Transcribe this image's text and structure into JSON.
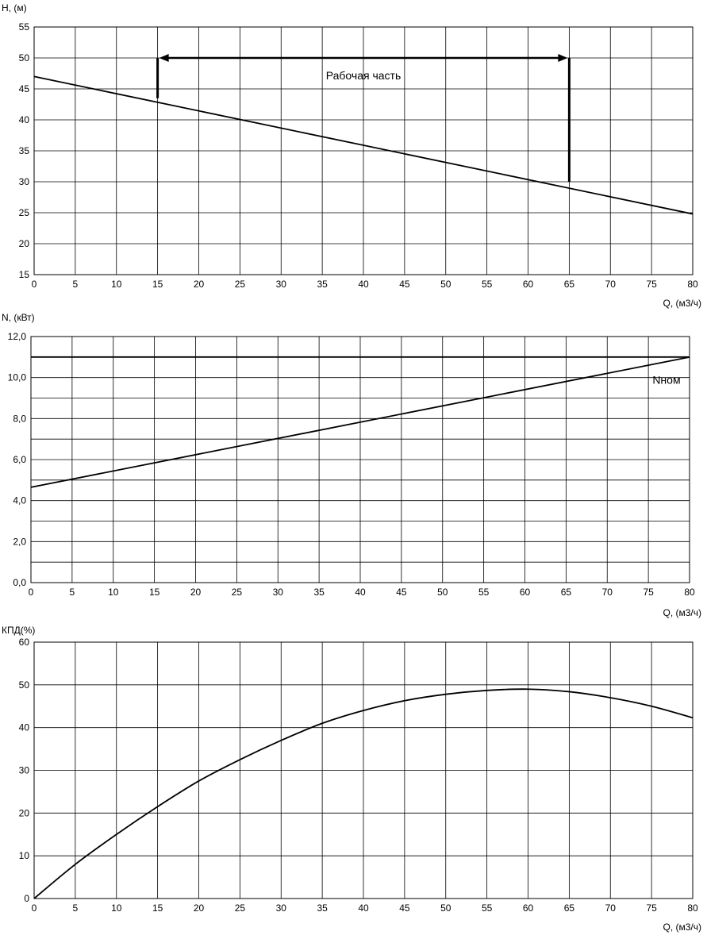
{
  "chart_data": [
    {
      "type": "line",
      "id": "head",
      "ylabel": "H, (м)",
      "xlabel": "Q, (м3/ч)",
      "xlim": [
        0,
        80
      ],
      "ylim": [
        15,
        55
      ],
      "xticks": [
        0,
        5,
        10,
        15,
        20,
        25,
        30,
        35,
        40,
        45,
        50,
        55,
        60,
        65,
        70,
        75,
        80
      ],
      "yticks": [
        15,
        20,
        25,
        30,
        35,
        40,
        45,
        50,
        55
      ],
      "ytick_labels": [
        "15",
        "20",
        "25",
        "30",
        "35",
        "40",
        "45",
        "50",
        "55"
      ],
      "grid": true,
      "series": [
        {
          "x": [
            0,
            80
          ],
          "y": [
            47,
            24.8
          ]
        }
      ],
      "annotation": {
        "text": "Рабочая часть",
        "x_range": [
          15,
          65
        ],
        "y_top": 50,
        "y_left_bottom": 43.5,
        "y_right_bottom": 30
      }
    },
    {
      "type": "line",
      "id": "power",
      "ylabel": "N, (кВт)",
      "xlabel": "Q, (м3/ч)",
      "xlim": [
        0,
        80
      ],
      "ylim": [
        0,
        12
      ],
      "xticks": [
        0,
        5,
        10,
        15,
        20,
        25,
        30,
        35,
        40,
        45,
        50,
        55,
        60,
        65,
        70,
        75,
        80
      ],
      "yticks": [
        0,
        1,
        2,
        3,
        4,
        5,
        6,
        7,
        8,
        9,
        10,
        11,
        12
      ],
      "ytick_labels": [
        "0,0",
        "",
        "2,0",
        "",
        "4,0",
        "",
        "6,0",
        "",
        "8,0",
        "",
        "10,0",
        "",
        "12,0"
      ],
      "grid": true,
      "series": [
        {
          "x": [
            0,
            80
          ],
          "y": [
            4.65,
            11.0
          ]
        }
      ],
      "reference_line": {
        "label": "Nном",
        "y": 11.0
      }
    },
    {
      "type": "line",
      "id": "efficiency",
      "ylabel": "КПД(%)",
      "xlabel": "Q, (м3/ч)",
      "xlim": [
        0,
        80
      ],
      "ylim": [
        0,
        60
      ],
      "xticks": [
        0,
        5,
        10,
        15,
        20,
        25,
        30,
        35,
        40,
        45,
        50,
        55,
        60,
        65,
        70,
        75,
        80
      ],
      "yticks": [
        0,
        10,
        20,
        30,
        40,
        50,
        60
      ],
      "ytick_labels": [
        "0",
        "10",
        "20",
        "30",
        "40",
        "50",
        "60"
      ],
      "grid": true,
      "series": [
        {
          "x": [
            0,
            5,
            10,
            15,
            20,
            25,
            30,
            35,
            40,
            45,
            50,
            55,
            60,
            65,
            70,
            75,
            80
          ],
          "y": [
            0,
            8,
            15,
            21.5,
            27.5,
            32.5,
            37,
            41,
            44,
            46.3,
            47.8,
            48.7,
            49,
            48.4,
            47,
            45,
            42.3
          ]
        }
      ]
    }
  ]
}
